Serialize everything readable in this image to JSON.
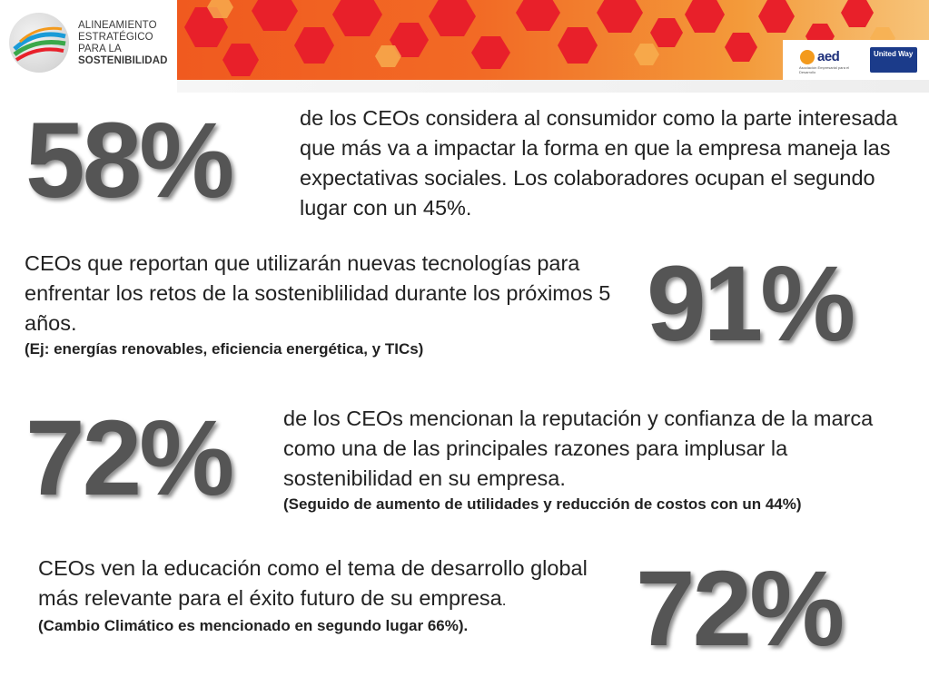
{
  "logo": {
    "line1": "ALINEAMIENTO",
    "line2": "ESTRATÉGICO",
    "line3": "PARA LA",
    "line4": "SOSTENIBILIDAD"
  },
  "partners": {
    "aed": "aed",
    "aed_sub": "Asociación Empresarial para el Desarrollo",
    "united_way": "United Way"
  },
  "stats": [
    {
      "value": "58%",
      "text": "de los CEOs considera al consumidor como la parte interesada que más va a impactar la forma en que la empresa maneja las expectativas sociales.  Los colaboradores ocupan el segundo lugar con un 45%.",
      "note": ""
    },
    {
      "value": "91%",
      "text": "CEOs que reportan que utilizarán nuevas tecnologías para enfrentar los retos de la sosteniblilidad durante los próximos 5 años.",
      "note": "(Ej: energías renovables, eficiencia energética, y TICs)"
    },
    {
      "value": "72%",
      "text": "de los CEOs mencionan la reputación y confianza de la marca como una de las principales razones para implusar la sostenibilidad en su empresa.",
      "note": "(Seguido de aumento de utilidades y reducción de costos con un 44%)"
    },
    {
      "value": "72%",
      "text": "CEOs ven la educación como el tema de desarrollo global más relevante para el éxito futuro de su empresa",
      "text_end": ".",
      "note": "(Cambio Climático es mencionado en segundo lugar 66%)."
    }
  ],
  "colors": {
    "banner_orange": "#f05a1f",
    "hex_red": "#e8202a",
    "big_number": "#555555"
  }
}
